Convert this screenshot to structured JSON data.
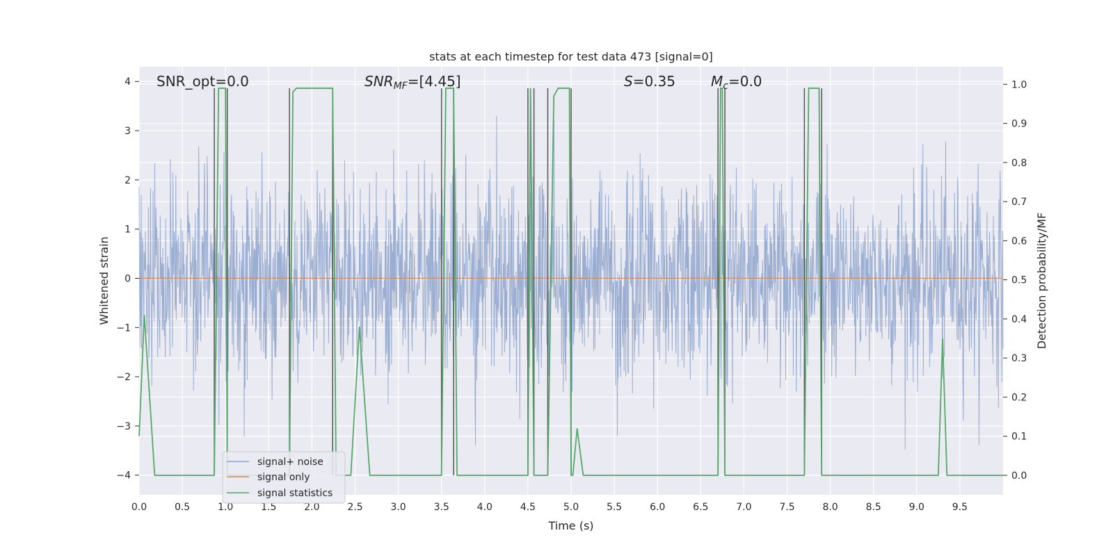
{
  "chart_data": {
    "type": "line",
    "title": "stats at each timestep for test data 473 [signal=0]",
    "xlabel": "Time (s)",
    "ylabel_left": "Whitened strain",
    "ylabel_right": "Detection probability/MF",
    "xlim": [
      0,
      10
    ],
    "ylim_left": [
      -4.4,
      4.3
    ],
    "ylim_right": [
      -0.05,
      1.045
    ],
    "x_ticks": [
      "0.0",
      "0.5",
      "1.0",
      "1.5",
      "2.0",
      "2.5",
      "3.0",
      "3.5",
      "4.0",
      "4.5",
      "5.0",
      "5.5",
      "6.0",
      "6.5",
      "7.0",
      "7.5",
      "8.0",
      "8.5",
      "9.0",
      "9.5"
    ],
    "y_ticks_left": [
      "−4",
      "−3",
      "−2",
      "−1",
      "0",
      "1",
      "2",
      "3",
      "4"
    ],
    "y_ticks_right": [
      "0.0",
      "0.1",
      "0.2",
      "0.3",
      "0.4",
      "0.5",
      "0.6",
      "0.7",
      "0.8",
      "0.9",
      "1.0"
    ],
    "grid": true,
    "legend_position": "lower-left",
    "colors": {
      "noise": "#4c72b0",
      "signal": "#dd8452",
      "stats": "#55a868",
      "vlines": "#555555",
      "background": "#eaeaf2",
      "grid": "#ffffff"
    },
    "annotations": {
      "snr_opt": "SNR_opt=0.0",
      "snr_mf_base": "SNR",
      "snr_mf_sub": "MF",
      "snr_mf_value": "=[4.45]",
      "s_symbol": "S",
      "s_value": "=0.35",
      "mc_symbol": "M",
      "mc_sub": "c",
      "mc_value": "=0.0"
    },
    "series": [
      {
        "name": "signal+ noise",
        "axis": "left",
        "kind": "noise",
        "amplitude_std": 1.0,
        "n_samples": 2048
      },
      {
        "name": "signal only",
        "axis": "left",
        "x": [
          0,
          10
        ],
        "y": [
          0,
          0
        ]
      },
      {
        "name": "signal statistics",
        "axis": "right",
        "x": [
          0.0,
          0.06,
          0.18,
          0.25,
          0.87,
          0.92,
          0.94,
          0.98,
          1.0,
          1.02,
          1.04,
          1.1,
          1.74,
          1.78,
          1.82,
          2.24,
          2.28,
          2.3,
          2.38,
          2.45,
          2.55,
          2.67,
          3.5,
          3.55,
          3.58,
          3.64,
          3.68,
          4.5,
          4.53,
          4.57,
          4.62,
          4.73,
          4.8,
          4.85,
          4.88,
          4.98,
          5.0,
          5.02,
          5.07,
          5.14,
          6.7,
          6.73,
          6.75,
          6.78,
          6.85,
          7.7,
          7.75,
          7.87,
          7.9,
          7.95,
          9.25,
          9.3,
          9.35,
          9.45,
          10.0
        ],
        "y": [
          0.1,
          0.41,
          0.0,
          0.0,
          0.0,
          0.99,
          0.99,
          0.99,
          0.99,
          0.0,
          0.0,
          0.0,
          0.0,
          0.98,
          0.99,
          0.99,
          0.0,
          0.0,
          0.0,
          0.0,
          0.38,
          0.0,
          0.0,
          0.99,
          0.99,
          0.99,
          0.0,
          0.0,
          0.99,
          0.0,
          0.0,
          0.0,
          0.97,
          0.99,
          0.99,
          0.99,
          0.0,
          0.0,
          0.12,
          0.0,
          0.0,
          0.99,
          0.99,
          0.0,
          0.0,
          0.0,
          0.99,
          0.99,
          0.0,
          0.0,
          0.0,
          0.35,
          0.0,
          0.0,
          0.0
        ]
      }
    ],
    "vertical_lines_x": [
      0.87,
      1.02,
      1.74,
      2.24,
      3.5,
      3.64,
      4.5,
      4.57,
      4.73,
      5.0,
      6.7,
      6.78,
      7.7,
      7.9
    ],
    "legend": [
      "signal+ noise",
      "signal only",
      "signal statistics"
    ]
  }
}
